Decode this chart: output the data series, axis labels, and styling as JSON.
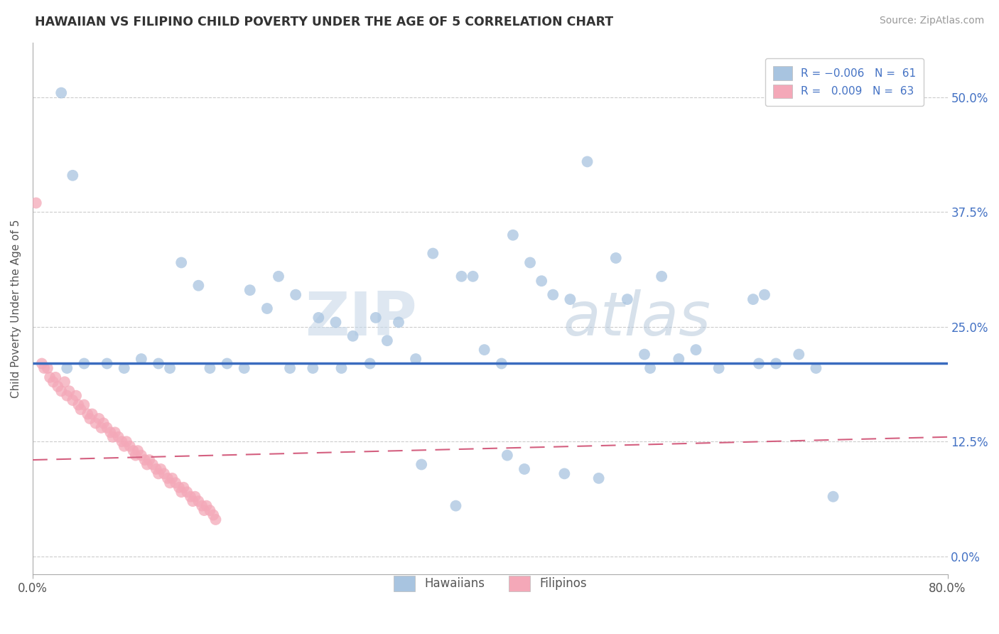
{
  "title": "HAWAIIAN VS FILIPINO CHILD POVERTY UNDER THE AGE OF 5 CORRELATION CHART",
  "source": "Source: ZipAtlas.com",
  "ylabel": "Child Poverty Under the Age of 5",
  "ytick_vals": [
    0.0,
    12.5,
    25.0,
    37.5,
    50.0
  ],
  "xlim": [
    0.0,
    80.0
  ],
  "ylim": [
    -2.0,
    56.0
  ],
  "watermark_zip": "ZIP",
  "watermark_atlas": "atlas",
  "hawaiian_color": "#a8c4e0",
  "filipino_color": "#f4a8b8",
  "hawaiian_line_color": "#3a6bbf",
  "filipino_line_color": "#d46080",
  "hawaiian_line_y": 21.0,
  "filipino_line_start_y": 10.5,
  "filipino_line_end_y": 13.0,
  "hawaiian_dots": [
    [
      2.5,
      50.5
    ],
    [
      3.5,
      41.5
    ],
    [
      13.0,
      32.0
    ],
    [
      14.5,
      29.5
    ],
    [
      19.0,
      29.0
    ],
    [
      20.5,
      27.0
    ],
    [
      21.5,
      30.5
    ],
    [
      23.0,
      28.5
    ],
    [
      25.0,
      26.0
    ],
    [
      26.5,
      25.5
    ],
    [
      28.0,
      24.0
    ],
    [
      30.0,
      26.0
    ],
    [
      31.0,
      23.5
    ],
    [
      32.0,
      25.5
    ],
    [
      33.5,
      21.5
    ],
    [
      35.0,
      33.0
    ],
    [
      37.5,
      30.5
    ],
    [
      38.5,
      30.5
    ],
    [
      39.5,
      22.5
    ],
    [
      41.0,
      21.0
    ],
    [
      42.0,
      35.0
    ],
    [
      43.5,
      32.0
    ],
    [
      44.5,
      30.0
    ],
    [
      45.5,
      28.5
    ],
    [
      47.0,
      28.0
    ],
    [
      48.5,
      43.0
    ],
    [
      51.0,
      32.5
    ],
    [
      52.0,
      28.0
    ],
    [
      53.5,
      22.0
    ],
    [
      55.0,
      30.5
    ],
    [
      56.5,
      21.5
    ],
    [
      58.0,
      22.5
    ],
    [
      60.0,
      20.5
    ],
    [
      63.0,
      28.0
    ],
    [
      64.0,
      28.5
    ],
    [
      65.0,
      21.0
    ],
    [
      67.0,
      22.0
    ],
    [
      68.5,
      20.5
    ],
    [
      6.5,
      21.0
    ],
    [
      8.0,
      20.5
    ],
    [
      9.5,
      21.5
    ],
    [
      11.0,
      21.0
    ],
    [
      12.0,
      20.5
    ],
    [
      15.5,
      20.5
    ],
    [
      17.0,
      21.0
    ],
    [
      18.5,
      20.5
    ],
    [
      22.5,
      20.5
    ],
    [
      24.5,
      20.5
    ],
    [
      3.0,
      20.5
    ],
    [
      4.5,
      21.0
    ],
    [
      27.0,
      20.5
    ],
    [
      29.5,
      21.0
    ],
    [
      34.0,
      10.0
    ],
    [
      37.0,
      5.5
    ],
    [
      41.5,
      11.0
    ],
    [
      43.0,
      9.5
    ],
    [
      46.5,
      9.0
    ],
    [
      49.5,
      8.5
    ],
    [
      63.5,
      21.0
    ],
    [
      70.0,
      6.5
    ],
    [
      54.0,
      20.5
    ]
  ],
  "filipino_dots": [
    [
      0.3,
      38.5
    ],
    [
      0.8,
      21.0
    ],
    [
      1.0,
      20.5
    ],
    [
      1.3,
      20.5
    ],
    [
      1.5,
      19.5
    ],
    [
      1.8,
      19.0
    ],
    [
      2.0,
      19.5
    ],
    [
      2.2,
      18.5
    ],
    [
      2.5,
      18.0
    ],
    [
      2.8,
      19.0
    ],
    [
      3.0,
      17.5
    ],
    [
      3.2,
      18.0
    ],
    [
      3.5,
      17.0
    ],
    [
      3.8,
      17.5
    ],
    [
      4.0,
      16.5
    ],
    [
      4.2,
      16.0
    ],
    [
      4.5,
      16.5
    ],
    [
      4.8,
      15.5
    ],
    [
      5.0,
      15.0
    ],
    [
      5.2,
      15.5
    ],
    [
      5.5,
      14.5
    ],
    [
      5.8,
      15.0
    ],
    [
      6.0,
      14.0
    ],
    [
      6.2,
      14.5
    ],
    [
      6.5,
      14.0
    ],
    [
      6.8,
      13.5
    ],
    [
      7.0,
      13.0
    ],
    [
      7.2,
      13.5
    ],
    [
      7.5,
      13.0
    ],
    [
      7.8,
      12.5
    ],
    [
      8.0,
      12.0
    ],
    [
      8.2,
      12.5
    ],
    [
      8.5,
      12.0
    ],
    [
      8.8,
      11.5
    ],
    [
      9.0,
      11.0
    ],
    [
      9.2,
      11.5
    ],
    [
      9.5,
      11.0
    ],
    [
      9.8,
      10.5
    ],
    [
      10.0,
      10.0
    ],
    [
      10.2,
      10.5
    ],
    [
      10.5,
      10.0
    ],
    [
      10.8,
      9.5
    ],
    [
      11.0,
      9.0
    ],
    [
      11.2,
      9.5
    ],
    [
      11.5,
      9.0
    ],
    [
      11.8,
      8.5
    ],
    [
      12.0,
      8.0
    ],
    [
      12.2,
      8.5
    ],
    [
      12.5,
      8.0
    ],
    [
      12.8,
      7.5
    ],
    [
      13.0,
      7.0
    ],
    [
      13.2,
      7.5
    ],
    [
      13.5,
      7.0
    ],
    [
      13.8,
      6.5
    ],
    [
      14.0,
      6.0
    ],
    [
      14.2,
      6.5
    ],
    [
      14.5,
      6.0
    ],
    [
      14.8,
      5.5
    ],
    [
      15.0,
      5.0
    ],
    [
      15.2,
      5.5
    ],
    [
      15.5,
      5.0
    ],
    [
      15.8,
      4.5
    ],
    [
      16.0,
      4.0
    ]
  ]
}
